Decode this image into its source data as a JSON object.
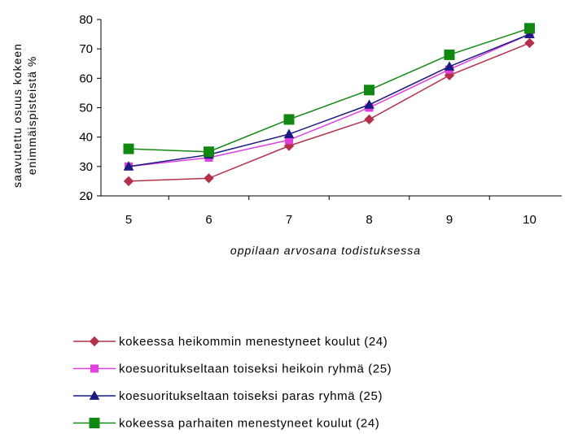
{
  "chart_data": {
    "type": "line",
    "x": [
      "5",
      "6",
      "7",
      "8",
      "9",
      "10"
    ],
    "xlabel": "oppilaan arvosana todistuksessa",
    "ylabel": [
      "saavutettu osuus kokeen",
      "enimmäispisteistä %"
    ],
    "ylim": [
      20,
      80
    ],
    "yticks": [
      20,
      30,
      40,
      50,
      60,
      70,
      80
    ],
    "grid": false,
    "legend_position": "bottom",
    "series": [
      {
        "name": "kokeessa heikommin menestyneet koulut (24)",
        "color": "#b5304a",
        "marker": "diamond",
        "values": [
          25,
          26,
          37,
          46,
          61,
          72
        ]
      },
      {
        "name": "koesuoritukseltaan toiseksi heikoin ryhmä (25)",
        "color": "#e040e0",
        "marker": "square",
        "values": [
          30,
          33,
          39,
          50,
          63,
          75
        ]
      },
      {
        "name": "koesuoritukseltaan toiseksi paras ryhmä (25)",
        "color": "#1a1a80",
        "marker": "triangle",
        "values": [
          30,
          34,
          41,
          51,
          64,
          75
        ]
      },
      {
        "name": "kokeessa parhaiten menestyneet koulut (24)",
        "color": "#118811",
        "marker": "square",
        "values": [
          36,
          35,
          46,
          56,
          68,
          77
        ]
      }
    ]
  }
}
